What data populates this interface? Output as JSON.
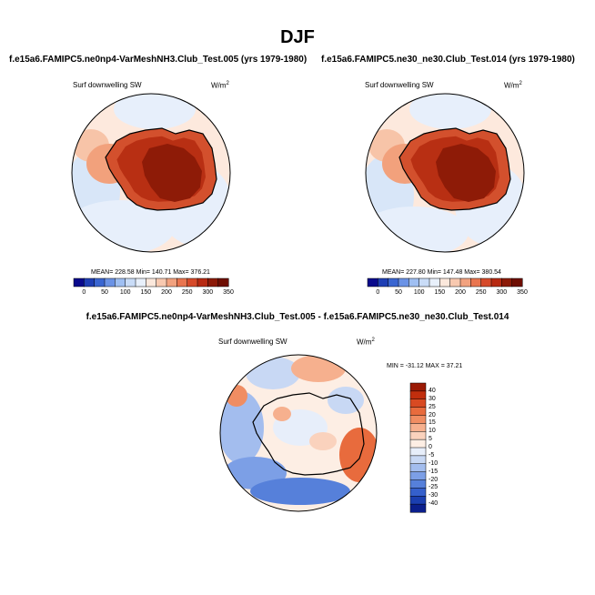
{
  "figure": {
    "title": "DJF",
    "panels": [
      {
        "subtitle": "f.e15a6.FAMIPC5.ne0np4-VarMeshNH3.Club_Test.005 (yrs 1979-1980)",
        "variable": "Surf downwelling SW",
        "units": "W/m",
        "units_sup": "2",
        "stats": "MEAN= 228.58  Min= 140.71  Max= 376.21"
      },
      {
        "subtitle": "f.e15a6.FAMIPC5.ne30_ne30.Club_Test.014 (yrs 1979-1980)",
        "variable": "Surf downwelling SW",
        "units": "W/m",
        "units_sup": "2",
        "stats": "MEAN= 227.80  Min= 147.48  Max= 380.54"
      }
    ],
    "diff": {
      "subtitle": "f.e15a6.FAMIPC5.ne0np4-VarMeshNH3.Club_Test.005 - f.e15a6.FAMIPC5.ne30_ne30.Club_Test.014",
      "variable": "Surf downwelling SW",
      "units": "W/m",
      "units_sup": "2",
      "stats": "MIN = -31.12  MAX =  37.21"
    }
  },
  "colorbar_main": {
    "ticks": [
      "0",
      "50",
      "100",
      "150",
      "200",
      "250",
      "300",
      "350"
    ],
    "colors": [
      "#0a0a8c",
      "#1f3fb5",
      "#3a66d1",
      "#6b93e6",
      "#9fbff2",
      "#c9dcf7",
      "#e8f0fb",
      "#fbe8dc",
      "#f8c9b0",
      "#f2a27f",
      "#e9754f",
      "#d64a2a",
      "#b72a12",
      "#8c1a07",
      "#6e0e02"
    ]
  },
  "colorbar_diff": {
    "labels": [
      "40",
      "30",
      "25",
      "20",
      "15",
      "10",
      "5",
      "0",
      "-5",
      "-10",
      "-15",
      "-20",
      "-25",
      "-30",
      "-40"
    ],
    "colors": [
      "#9b1a05",
      "#c12e0d",
      "#d84a22",
      "#e86b3d",
      "#f08d62",
      "#f6b08e",
      "#fad2bd",
      "#fdeee4",
      "#e7eefa",
      "#c8d8f4",
      "#a3bdee",
      "#7c9fe6",
      "#5680da",
      "#3560cc",
      "#1b3fb0",
      "#0b1f8c"
    ]
  }
}
